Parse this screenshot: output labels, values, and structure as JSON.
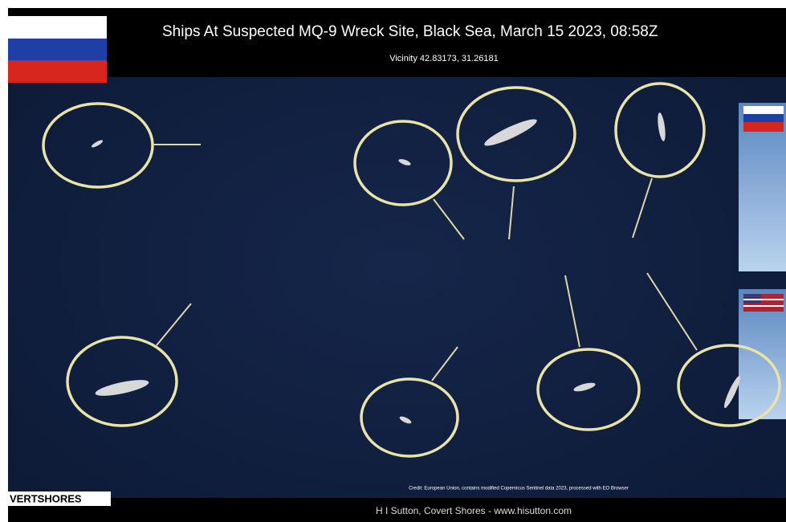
{
  "header": {
    "title": "Ships At Suspected MQ-9 Wreck Site, Black Sea, March 15 2023, 08:58Z",
    "subtitle": "Vicinity 42.83173, 31.26181"
  },
  "credit": "Credit: European Union, contains modified Copernicus Sentinel data 2023, processed with EO Browser",
  "logo": "VERTSHORES",
  "footer": "H I Sutton, Covert Shores - www.hisutton.com"
}
